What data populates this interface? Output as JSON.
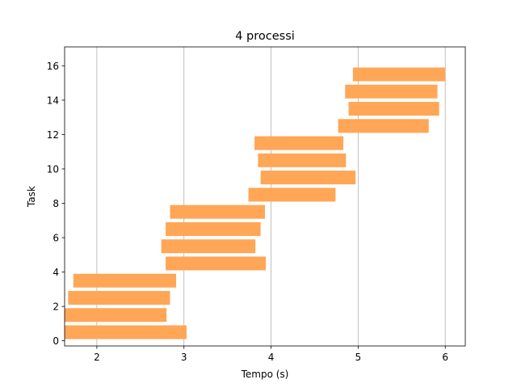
{
  "chart_data": {
    "type": "bar",
    "orientation": "horizontal",
    "title": "4 processi",
    "xlabel": "Tempo (s)",
    "ylabel": "Task",
    "xlim": [
      1.63,
      6.23
    ],
    "ylim": [
      -0.3,
      17.1
    ],
    "x_ticks": [
      2,
      3,
      4,
      5,
      6
    ],
    "y_ticks": [
      0,
      2,
      4,
      6,
      8,
      10,
      12,
      14,
      16
    ],
    "grid": "x",
    "bar_color": "#FFA657",
    "bars": [
      {
        "task": 1,
        "start": 1.63,
        "end": 3.03
      },
      {
        "task": 2,
        "start": 1.63,
        "end": 2.8
      },
      {
        "task": 3,
        "start": 1.67,
        "end": 2.84
      },
      {
        "task": 4,
        "start": 1.73,
        "end": 2.91
      },
      {
        "task": 5,
        "start": 2.79,
        "end": 3.94
      },
      {
        "task": 6,
        "start": 2.74,
        "end": 3.82
      },
      {
        "task": 7,
        "start": 2.79,
        "end": 3.88
      },
      {
        "task": 8,
        "start": 2.84,
        "end": 3.93
      },
      {
        "task": 9,
        "start": 3.74,
        "end": 4.74
      },
      {
        "task": 10,
        "start": 3.88,
        "end": 4.97
      },
      {
        "task": 11,
        "start": 3.85,
        "end": 4.86
      },
      {
        "task": 12,
        "start": 3.81,
        "end": 4.83
      },
      {
        "task": 13,
        "start": 4.77,
        "end": 5.81
      },
      {
        "task": 14,
        "start": 4.89,
        "end": 5.93
      },
      {
        "task": 15,
        "start": 4.85,
        "end": 5.91
      },
      {
        "task": 16,
        "start": 4.94,
        "end": 6.0
      }
    ]
  }
}
